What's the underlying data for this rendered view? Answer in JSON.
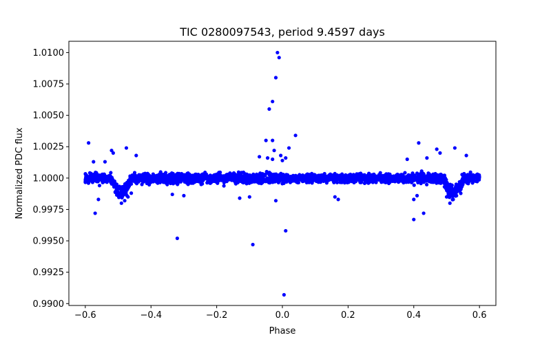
{
  "chart_data": {
    "type": "scatter",
    "title": "TIC 0280097543, period 9.4597 days",
    "xlabel": "Phase",
    "ylabel": "Normalized PDC flux",
    "xlim": [
      -0.65,
      0.65
    ],
    "ylim": [
      0.98985,
      1.0109
    ],
    "grid": false,
    "marker_color": "#0000ff",
    "marker": "circle",
    "x_ticks": [
      -0.6,
      -0.4,
      -0.2,
      0.0,
      0.2,
      0.4,
      0.6
    ],
    "x_tick_labels": [
      "−0.6",
      "−0.4",
      "−0.2",
      "0.0",
      "0.2",
      "0.4",
      "0.6"
    ],
    "y_ticks": [
      0.99,
      0.9925,
      0.995,
      0.9975,
      1.0,
      1.0025,
      1.005,
      1.0075,
      1.01
    ],
    "y_tick_labels": [
      "0.9900",
      "0.9925",
      "0.9950",
      "0.9975",
      "1.0000",
      "1.0025",
      "1.0050",
      "1.0075",
      "1.0100"
    ],
    "series": [
      {
        "name": "data",
        "points": [
          [
            -0.015,
            1.01
          ],
          [
            -0.01,
            1.0096
          ],
          [
            -0.02,
            1.008
          ],
          [
            -0.03,
            1.0061
          ],
          [
            -0.04,
            1.0055
          ],
          [
            0.04,
            1.0034
          ],
          [
            -0.05,
            1.003
          ],
          [
            -0.03,
            1.003
          ],
          [
            0.02,
            1.0024
          ],
          [
            -0.025,
            1.0022
          ],
          [
            -0.005,
            1.0018
          ],
          [
            -0.045,
            1.0016
          ],
          [
            0.01,
            1.0016
          ],
          [
            -0.07,
            1.0017
          ],
          [
            -0.03,
            1.0015
          ],
          [
            0.0,
            1.0014
          ],
          [
            -0.59,
            1.0028
          ],
          [
            -0.575,
            1.0013
          ],
          [
            -0.54,
            1.0013
          ],
          [
            -0.52,
            1.0022
          ],
          [
            -0.515,
            1.002
          ],
          [
            -0.475,
            1.0024
          ],
          [
            -0.445,
            1.0018
          ],
          [
            0.415,
            1.0028
          ],
          [
            0.47,
            1.0023
          ],
          [
            0.48,
            1.002
          ],
          [
            0.525,
            1.0024
          ],
          [
            0.56,
            1.0018
          ],
          [
            0.44,
            1.0016
          ],
          [
            0.38,
            1.0015
          ],
          [
            -0.32,
            0.9952
          ],
          [
            -0.09,
            0.9947
          ],
          [
            0.01,
            0.9958
          ],
          [
            0.005,
            0.9907
          ],
          [
            0.4,
            0.9967
          ],
          [
            0.43,
            0.9972
          ],
          [
            -0.57,
            0.9972
          ],
          [
            -0.56,
            0.9983
          ],
          [
            -0.49,
            0.998
          ],
          [
            -0.48,
            0.9982
          ],
          [
            -0.47,
            0.9985
          ],
          [
            -0.46,
            0.9988
          ],
          [
            0.5,
            0.9985
          ],
          [
            0.51,
            0.998
          ],
          [
            0.52,
            0.9983
          ],
          [
            0.53,
            0.9986
          ],
          [
            -0.13,
            0.9984
          ],
          [
            -0.1,
            0.9985
          ],
          [
            -0.02,
            0.9982
          ],
          [
            0.17,
            0.9983
          ],
          [
            0.16,
            0.9985
          ],
          [
            -0.335,
            0.9987
          ],
          [
            -0.3,
            0.9986
          ],
          [
            0.4,
            0.9983
          ],
          [
            0.41,
            0.9986
          ]
        ]
      }
    ],
    "dense_band": {
      "center": 1.0,
      "segments": [
        {
          "x_from": -0.6,
          "x_to": -0.52,
          "spread": 0.0006
        },
        {
          "x_from": -0.52,
          "x_to": -0.46,
          "spread": 0.0008,
          "dip": 0.0011
        },
        {
          "x_from": -0.46,
          "x_to": 0.0,
          "spread": 0.0006
        },
        {
          "x_from": 0.0,
          "x_to": 0.4,
          "spread": 0.0005
        },
        {
          "x_from": 0.4,
          "x_to": 0.49,
          "spread": 0.0006
        },
        {
          "x_from": 0.49,
          "x_to": 0.55,
          "spread": 0.0008,
          "dip": 0.0011
        },
        {
          "x_from": 0.55,
          "x_to": 0.6,
          "spread": 0.0005
        }
      ],
      "count": 2600
    }
  }
}
